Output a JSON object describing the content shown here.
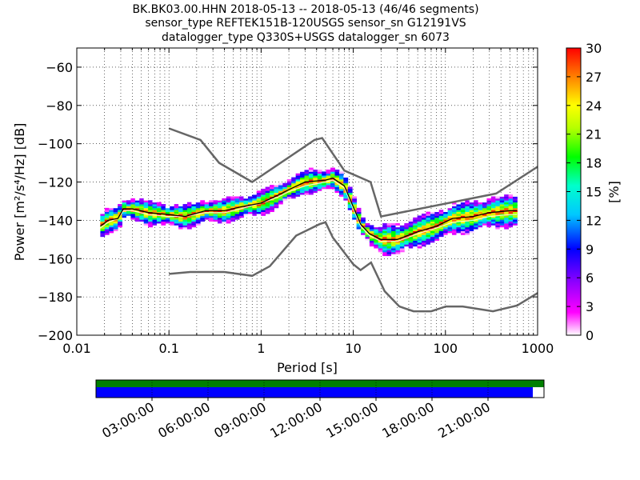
{
  "chart_data": {
    "type": "heatmap",
    "title_lines": [
      "BK.BK03.00.HHN   2018-05-13 -- 2018-05-13  (46/46 segments)",
      "sensor_type REFTEK151B-120USGS sensor_sn G12191VS",
      "datalogger_type Q330S+USGS datalogger_sn 6073"
    ],
    "xlabel": "Period [s]",
    "ylabel": "Power [m²/s⁴/Hz] [dB]",
    "x_scale": "log",
    "xlim": [
      0.01,
      1000
    ],
    "ylim": [
      -200,
      -50
    ],
    "x_tick_labels": [
      "0.01",
      "0.1",
      "1",
      "10",
      "100",
      "1000"
    ],
    "x_tick_values": [
      0.01,
      0.1,
      1,
      10,
      100,
      1000
    ],
    "y_ticks": [
      -60,
      -80,
      -100,
      -120,
      -140,
      -160,
      -180,
      -200
    ],
    "colorbar": {
      "label": "[%]",
      "range": [
        0,
        30
      ],
      "ticks": [
        0,
        3,
        6,
        9,
        12,
        15,
        18,
        21,
        24,
        27,
        30
      ]
    },
    "noise_model_high": [
      [
        0.1,
        -92
      ],
      [
        0.22,
        -98
      ],
      [
        0.35,
        -110
      ],
      [
        0.8,
        -120
      ],
      [
        3.8,
        -98
      ],
      [
        4.6,
        -97
      ],
      [
        8,
        -114
      ],
      [
        15.4,
        -120
      ],
      [
        20,
        -138
      ],
      [
        354.8,
        -126
      ],
      [
        1000,
        -112
      ]
    ],
    "noise_model_low": [
      [
        0.1,
        -168
      ],
      [
        0.17,
        -167
      ],
      [
        0.4,
        -167
      ],
      [
        0.8,
        -169
      ],
      [
        1.24,
        -164
      ],
      [
        2.4,
        -148
      ],
      [
        4.3,
        -142
      ],
      [
        5,
        -141
      ],
      [
        6,
        -149
      ],
      [
        10,
        -163
      ],
      [
        12,
        -166
      ],
      [
        15.6,
        -162
      ],
      [
        21.9,
        -177
      ],
      [
        31.6,
        -185
      ],
      [
        45,
        -187.5
      ],
      [
        70,
        -187.5
      ],
      [
        101,
        -185
      ],
      [
        154,
        -185
      ],
      [
        328,
        -187.5
      ],
      [
        600,
        -184.5
      ],
      [
        1000,
        -178
      ]
    ],
    "mode_curve": [
      [
        0.018,
        -143
      ],
      [
        0.022,
        -140
      ],
      [
        0.028,
        -139
      ],
      [
        0.032,
        -134
      ],
      [
        0.04,
        -134
      ],
      [
        0.06,
        -136
      ],
      [
        0.1,
        -137
      ],
      [
        0.15,
        -138
      ],
      [
        0.25,
        -135
      ],
      [
        0.4,
        -135
      ],
      [
        0.6,
        -133
      ],
      [
        1,
        -131
      ],
      [
        1.5,
        -127
      ],
      [
        2,
        -124
      ],
      [
        3,
        -120
      ],
      [
        5,
        -119
      ],
      [
        6,
        -118
      ],
      [
        8,
        -122
      ],
      [
        10,
        -133
      ],
      [
        12,
        -142
      ],
      [
        15,
        -147
      ],
      [
        20,
        -150
      ],
      [
        30,
        -150
      ],
      [
        50,
        -146
      ],
      [
        80,
        -143
      ],
      [
        120,
        -139
      ],
      [
        200,
        -138
      ],
      [
        300,
        -136
      ],
      [
        500,
        -135
      ],
      [
        600,
        -135
      ]
    ],
    "median_curve": [
      [
        0.018,
        -144
      ],
      [
        0.022,
        -141
      ],
      [
        0.028,
        -139
      ],
      [
        0.032,
        -135
      ],
      [
        0.04,
        -135
      ],
      [
        0.06,
        -137
      ],
      [
        0.1,
        -138
      ],
      [
        0.15,
        -138
      ],
      [
        0.25,
        -136
      ],
      [
        0.4,
        -136
      ],
      [
        0.6,
        -134
      ],
      [
        1,
        -131
      ],
      [
        1.5,
        -128
      ],
      [
        2,
        -125
      ],
      [
        3,
        -122
      ],
      [
        5,
        -120
      ],
      [
        6,
        -119
      ],
      [
        8,
        -123
      ],
      [
        10,
        -134
      ],
      [
        12,
        -143
      ],
      [
        15,
        -148
      ],
      [
        20,
        -151
      ],
      [
        30,
        -151
      ],
      [
        50,
        -147
      ],
      [
        80,
        -144
      ],
      [
        120,
        -141
      ],
      [
        200,
        -140
      ],
      [
        300,
        -138
      ],
      [
        500,
        -137
      ],
      [
        600,
        -137
      ]
    ],
    "timeline": {
      "time_labels": [
        "03:00:00",
        "06:00:00",
        "09:00:00",
        "12:00:00",
        "15:00:00",
        "18:00:00",
        "21:00:00"
      ],
      "time_hours": [
        3,
        6,
        9,
        12,
        15,
        18,
        21
      ],
      "coverage_fraction": 0.975,
      "colors": {
        "gaps_row": "#008000",
        "data_row": "#0000ff"
      }
    }
  }
}
